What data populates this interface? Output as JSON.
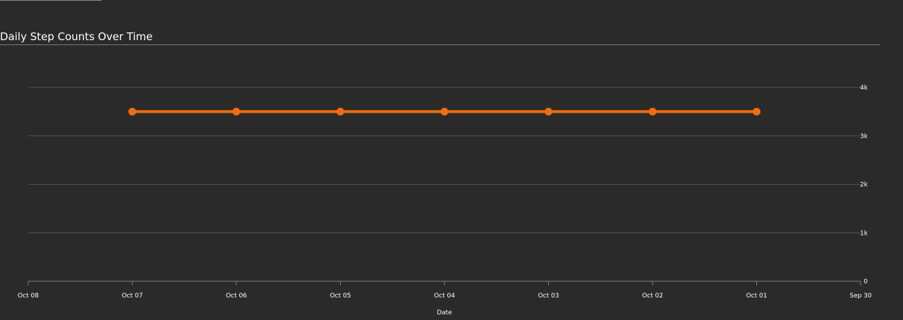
{
  "chart_data": {
    "type": "line",
    "title": "Daily Step Counts Over Time",
    "xlabel": "Date",
    "ylabel": "",
    "x_ticks": [
      "Oct 08",
      "Oct 07",
      "Oct 06",
      "Oct 05",
      "Oct 04",
      "Oct 03",
      "Oct 02",
      "Oct 01",
      "Sep 30"
    ],
    "y_ticks": [
      "0",
      "1k",
      "2k",
      "3k",
      "4k"
    ],
    "ylim": [
      0,
      4000
    ],
    "grid": true,
    "x_reversed": true,
    "y_axis_side": "right",
    "series": [
      {
        "color": "#f26b0f",
        "points": [
          {
            "x": "Oct 07",
            "y": 3500
          },
          {
            "x": "Oct 06",
            "y": 3500
          },
          {
            "x": "Oct 05",
            "y": 3500
          },
          {
            "x": "Oct 04",
            "y": 3500
          },
          {
            "x": "Oct 03",
            "y": 3500
          },
          {
            "x": "Oct 02",
            "y": 3500
          },
          {
            "x": "Oct 01",
            "y": 3500
          }
        ]
      }
    ]
  }
}
